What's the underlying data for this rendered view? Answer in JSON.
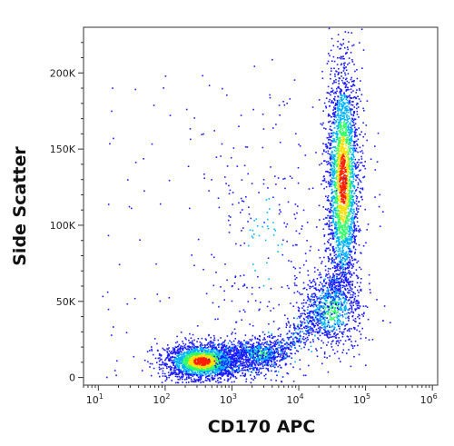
{
  "chart_data": {
    "type": "scatter",
    "title": "",
    "xlabel": "CD170 APC",
    "ylabel": "Side Scatter",
    "x_scale": "log",
    "xlim": [
      6,
      1200000
    ],
    "ylim": [
      -5000,
      230000
    ],
    "x_ticks": [
      {
        "value": 10,
        "base": "10",
        "exp": "1"
      },
      {
        "value": 100,
        "base": "10",
        "exp": "2"
      },
      {
        "value": 1000,
        "base": "10",
        "exp": "3"
      },
      {
        "value": 10000,
        "base": "10",
        "exp": "4"
      },
      {
        "value": 100000,
        "base": "10",
        "exp": "5"
      },
      {
        "value": 1000000,
        "base": "10",
        "exp": "6"
      }
    ],
    "y_ticks": [
      {
        "value": 0,
        "label": "0"
      },
      {
        "value": 50000,
        "label": "50K"
      },
      {
        "value": 100000,
        "label": "100K"
      },
      {
        "value": 150000,
        "label": "150K"
      },
      {
        "value": 200000,
        "label": "200K"
      }
    ],
    "grid": false,
    "legend": "none",
    "density_colors": [
      "#1a1aff",
      "#00b4ff",
      "#33ff66",
      "#ffe000",
      "#ff2000"
    ],
    "populations": [
      {
        "x_center": 350,
        "y_center": 11000,
        "x_spread_decades": 0.28,
        "y_spread": 6000,
        "points": 2200,
        "density": "high"
      },
      {
        "x_center": 2500,
        "y_center": 16000,
        "x_spread_decades": 0.22,
        "y_spread": 5000,
        "points": 450,
        "density": "medium"
      },
      {
        "x_center": 45000,
        "y_center": 130000,
        "x_spread_decades": 0.12,
        "y_spread": 38000,
        "points": 2600,
        "density": "high"
      },
      {
        "x_center": 30000,
        "y_center": 45000,
        "x_spread_decades": 0.25,
        "y_spread": 14000,
        "points": 700,
        "density": "medium"
      },
      {
        "x_center": 3000,
        "y_center": 90000,
        "x_spread_decades": 0.45,
        "y_spread": 50000,
        "points": 220,
        "density": "low"
      }
    ]
  }
}
